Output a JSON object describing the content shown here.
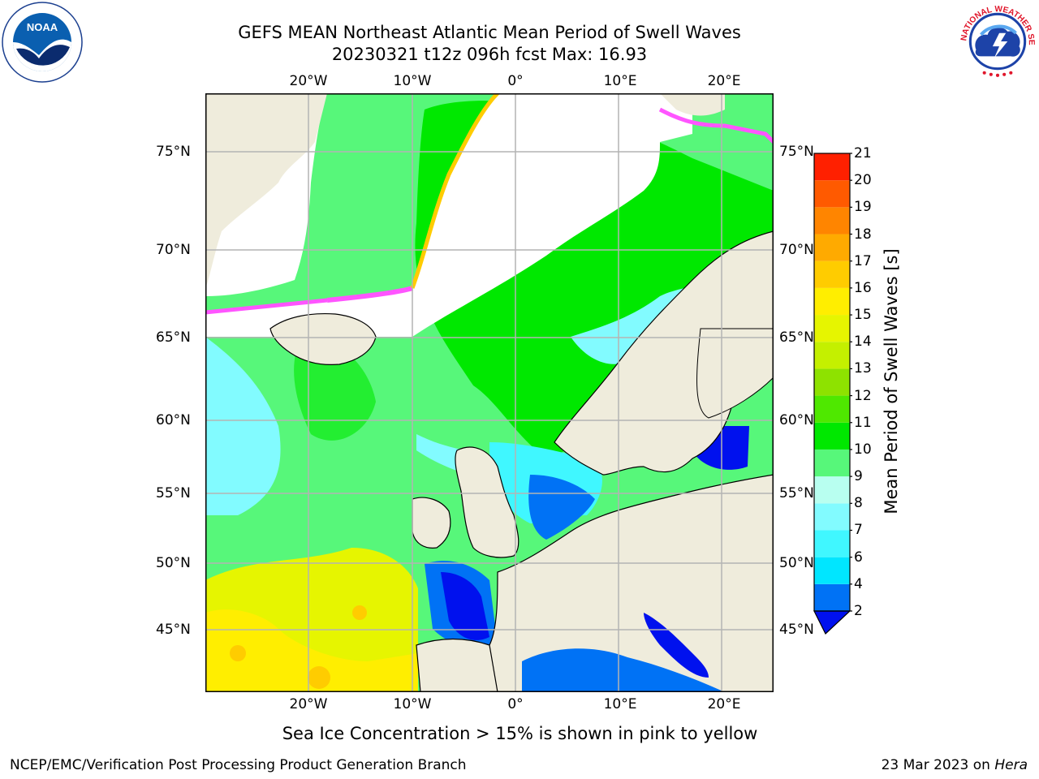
{
  "title_line1": "GEFS MEAN Northeast Atlantic Mean Period of Swell Waves",
  "title_line2": "20230321 t12z 096h fcst   Max: 16.93",
  "map": {
    "lon_labels": [
      "20°W",
      "10°W",
      "0°",
      "10°E",
      "20°E"
    ],
    "lat_labels": [
      "75°N",
      "70°N",
      "65°N",
      "60°N",
      "55°N",
      "50°N",
      "45°N"
    ],
    "lon_range": [
      -30,
      25
    ],
    "lat_range": [
      41,
      78
    ],
    "colors": {
      "land": "#efecdc",
      "no_data": "#ffffff",
      "grid": "#b4b4b4",
      "coast": "#000000"
    }
  },
  "colorbar": {
    "label": "Mean Period of Swell Waves [s]",
    "ticks": [
      "2",
      "4",
      "6",
      "7",
      "8",
      "9",
      "10",
      "11",
      "12",
      "13",
      "14",
      "15",
      "16",
      "17",
      "18",
      "19",
      "20",
      "21"
    ],
    "colors": [
      "#0072f5",
      "#00e6ff",
      "#40f7ff",
      "#82fbff",
      "#b8fff0",
      "#57f77a",
      "#00e800",
      "#4fe800",
      "#8ee200",
      "#c4f000",
      "#e6f500",
      "#ffee00",
      "#ffcc00",
      "#ffaa00",
      "#ff8500",
      "#ff5a00",
      "#ff2000"
    ],
    "under_color": "#0011ee"
  },
  "note": "Sea Ice Concentration > 15% is shown in pink to yellow",
  "footer": {
    "credit": "NCEP/EMC/Verification Post Processing Product Generation Branch",
    "date": "23 Mar 2023 on",
    "machine": "Hera"
  },
  "logos": {
    "noaa_text": "NOAA",
    "nws_text": "NATIONAL WEATHER SERVICE"
  }
}
